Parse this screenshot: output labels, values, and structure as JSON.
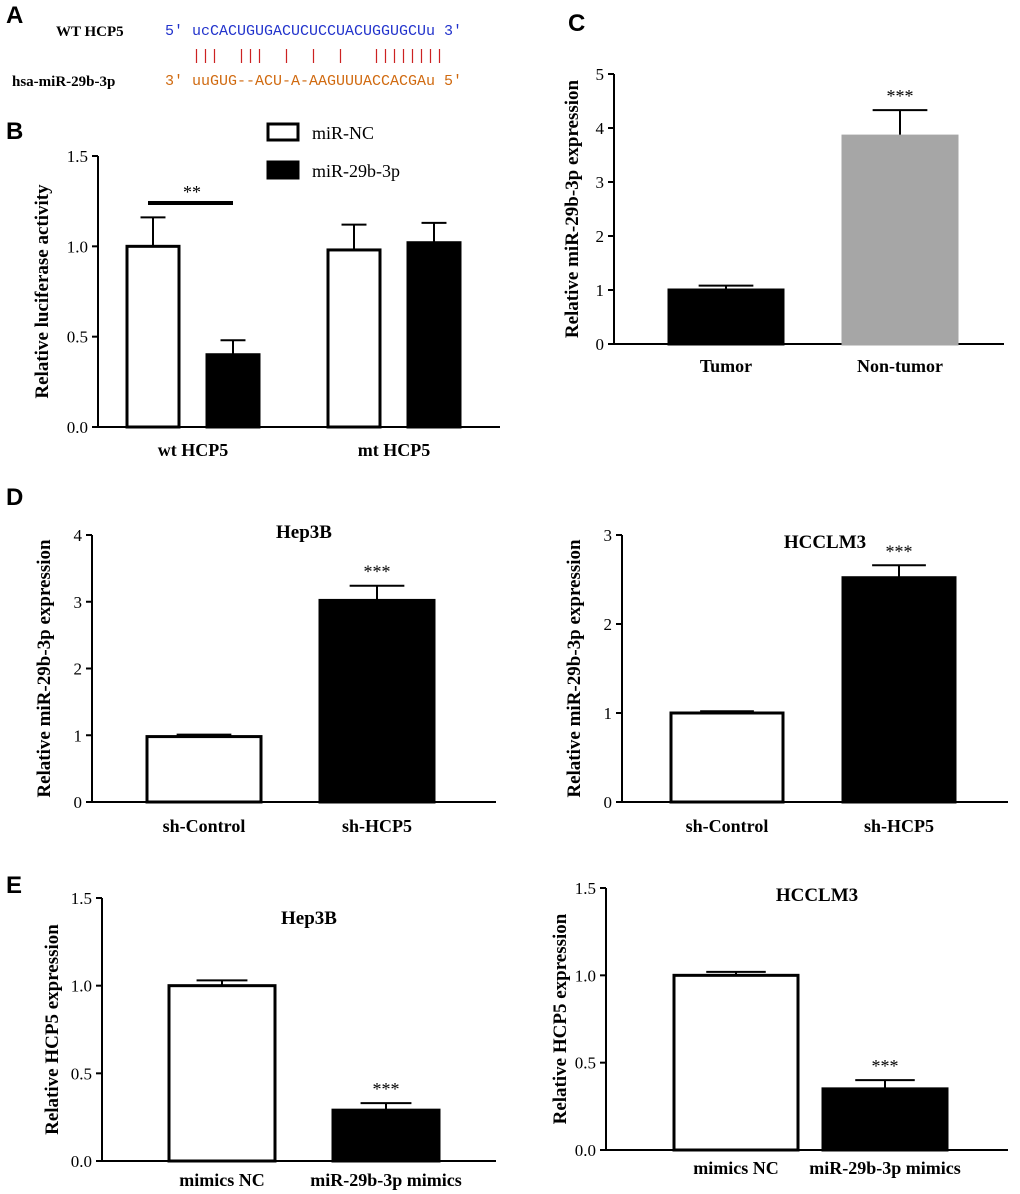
{
  "panels": {
    "A": "A",
    "B": "B",
    "C": "C",
    "D": "D",
    "E": "E"
  },
  "sequence": {
    "wt_label": "WT HCP5",
    "wt_seq": "5' ucCACUGUGACUCUCCUACUGGUGCUu 3'",
    "pair_marks": "|||  |||  |  |  |   ||||||||",
    "mir_label": "hsa-miR-29b-3p",
    "mir_seq": "3' uuGUG--ACU-A-AAGUUUACCACGAu 5'"
  },
  "chart_data": [
    {
      "id": "B",
      "type": "bar",
      "title": "",
      "ylabel": "Relative luciferase activity",
      "xlabel": "",
      "ylim": [
        0,
        1.5
      ],
      "yticks": [
        0.0,
        0.5,
        1.0,
        1.5
      ],
      "ytick_labels": [
        "0.0",
        "0.5",
        "1.0",
        "1.5"
      ],
      "categories": [
        "wt HCP5",
        "mt HCP5"
      ],
      "legend": [
        "miR-NC",
        "miR-29b-3p"
      ],
      "series": [
        {
          "name": "miR-NC",
          "values": [
            1.0,
            0.98
          ],
          "errors": [
            0.16,
            0.14
          ],
          "color": "#ffffff"
        },
        {
          "name": "miR-29b-3p",
          "values": [
            0.4,
            1.02
          ],
          "errors": [
            0.08,
            0.11
          ],
          "color": "#000000"
        }
      ],
      "annotations": [
        {
          "text": "**",
          "between": "wt HCP5"
        }
      ]
    },
    {
      "id": "C",
      "type": "bar",
      "title": "",
      "ylabel": "Relative miR-29b-3p expression",
      "xlabel": "",
      "ylim": [
        0,
        5
      ],
      "yticks": [
        0,
        1,
        2,
        3,
        4,
        5
      ],
      "ytick_labels": [
        "0",
        "1",
        "2",
        "3",
        "4",
        "5"
      ],
      "categories": [
        "Tumor",
        "Non-tumor"
      ],
      "values": [
        1.0,
        3.85
      ],
      "errors": [
        0.08,
        0.48
      ],
      "colors": [
        "#000000",
        "#a6a6a6"
      ],
      "sig": [
        "",
        "***"
      ]
    },
    {
      "id": "D1",
      "type": "bar",
      "title": "Hep3B",
      "ylabel": "Relative miR-29b-3p expression",
      "xlabel": "",
      "ylim": [
        0,
        4
      ],
      "yticks": [
        0,
        1,
        2,
        3,
        4
      ],
      "ytick_labels": [
        "0",
        "1",
        "2",
        "3",
        "4"
      ],
      "categories": [
        "sh-Control",
        "sh-HCP5"
      ],
      "values": [
        0.98,
        3.02
      ],
      "errors": [
        0.03,
        0.22
      ],
      "colors": [
        "#ffffff",
        "#000000"
      ],
      "sig": [
        "",
        "***"
      ]
    },
    {
      "id": "D2",
      "type": "bar",
      "title": "HCCLM3",
      "ylabel": "Relative miR-29b-3p expression",
      "xlabel": "",
      "ylim": [
        0,
        3
      ],
      "yticks": [
        0,
        1,
        2,
        3
      ],
      "ytick_labels": [
        "0",
        "1",
        "2",
        "3"
      ],
      "categories": [
        "sh-Control",
        "sh-HCP5"
      ],
      "values": [
        1.0,
        2.52
      ],
      "errors": [
        0.02,
        0.14
      ],
      "colors": [
        "#ffffff",
        "#000000"
      ],
      "sig": [
        "",
        "***"
      ]
    },
    {
      "id": "E1",
      "type": "bar",
      "title": "Hep3B",
      "ylabel": "Relative HCP5 expression",
      "xlabel": "",
      "ylim": [
        0,
        1.5
      ],
      "yticks": [
        0.0,
        0.5,
        1.0,
        1.5
      ],
      "ytick_labels": [
        "0.0",
        "0.5",
        "1.0",
        "1.5"
      ],
      "categories": [
        "mimics NC",
        "miR-29b-3p mimics"
      ],
      "values": [
        1.0,
        0.29
      ],
      "errors": [
        0.03,
        0.04
      ],
      "colors": [
        "#ffffff",
        "#000000"
      ],
      "sig": [
        "",
        "***"
      ]
    },
    {
      "id": "E2",
      "type": "bar",
      "title": "HCCLM3",
      "ylabel": "Relative HCP5 expression",
      "xlabel": "",
      "ylim": [
        0,
        1.5
      ],
      "yticks": [
        0.0,
        0.5,
        1.0,
        1.5
      ],
      "ytick_labels": [
        "0.0",
        "0.5",
        "1.0",
        "1.5"
      ],
      "categories": [
        "mimics NC",
        "miR-29b-3p mimics"
      ],
      "values": [
        1.0,
        0.35
      ],
      "errors": [
        0.02,
        0.05
      ],
      "colors": [
        "#ffffff",
        "#000000"
      ],
      "sig": [
        "",
        "***"
      ]
    }
  ]
}
